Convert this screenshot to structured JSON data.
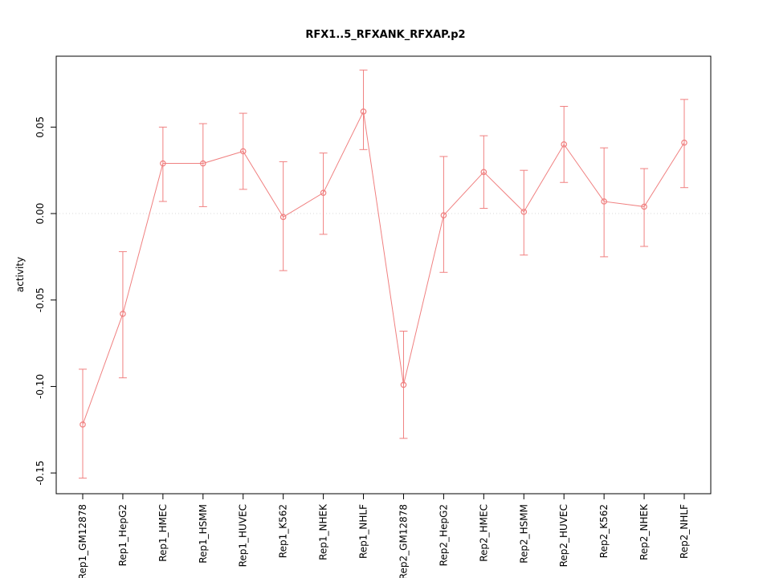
{
  "header": {
    "title": "RFX1..5_RFXANK_RFXAP.p2"
  },
  "chart_data": {
    "type": "scatter",
    "title": "RFX1..5_RFXANK_RFXAP.p2",
    "xlabel": "",
    "ylabel": "activity",
    "categories": [
      "Rep1_GM12878",
      "Rep1_HepG2",
      "Rep1_HMEC",
      "Rep1_HSMM",
      "Rep1_HUVEC",
      "Rep1_K562",
      "Rep1_NHEK",
      "Rep1_NHLF",
      "Rep2_GM12878",
      "Rep2_HepG2",
      "Rep2_HMEC",
      "Rep2_HSMM",
      "Rep2_HUVEC",
      "Rep2_K562",
      "Rep2_NHEK",
      "Rep2_NHLF"
    ],
    "series": [
      {
        "name": "activity",
        "values": [
          -0.122,
          -0.058,
          0.029,
          0.029,
          0.036,
          -0.002,
          0.012,
          0.059,
          -0.099,
          -0.001,
          0.024,
          0.001,
          0.04,
          0.007,
          0.004,
          0.041
        ],
        "error_low": [
          -0.153,
          -0.095,
          0.007,
          0.004,
          0.014,
          -0.033,
          -0.012,
          0.037,
          -0.13,
          -0.034,
          0.003,
          -0.024,
          0.018,
          -0.025,
          -0.019,
          0.015
        ],
        "error_high": [
          -0.09,
          -0.022,
          0.05,
          0.052,
          0.058,
          0.03,
          0.035,
          0.083,
          -0.068,
          0.033,
          0.045,
          0.025,
          0.062,
          0.038,
          0.026,
          0.066
        ]
      }
    ],
    "ylim": [
      -0.162,
      0.091
    ],
    "yticks": [
      -0.15,
      -0.1,
      -0.05,
      0.0,
      0.05
    ],
    "grid_lines_y": [
      0
    ],
    "legend": "none",
    "x_tick_rotation": 90,
    "y_tick_rotation": 90,
    "marker": "open-circle",
    "line_style": "solid",
    "grid_style": "dotted",
    "colors": {
      "series": "#f08080",
      "grid": "#d9d9d9",
      "axis": "#000000",
      "background": "#ffffff"
    }
  }
}
